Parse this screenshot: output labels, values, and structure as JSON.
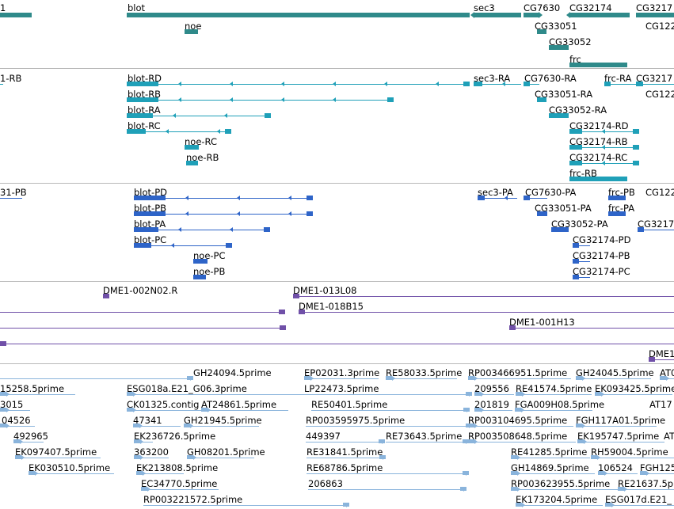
{
  "colors": {
    "gene": "#2f8a8a",
    "transcript": "#1fa0b8",
    "protein": "#2e64c8",
    "clone": "#7050a8",
    "est": "#8ab4dc",
    "separator": "#b8b8b8"
  },
  "tracks": {
    "genes": [
      {
        "label": "1"
      },
      {
        "label": "blot"
      },
      {
        "label": "noe"
      },
      {
        "label": "sec3"
      },
      {
        "label": "CG7630"
      },
      {
        "label": "CG32174"
      },
      {
        "label": "CG3217"
      },
      {
        "label": "CG33051"
      },
      {
        "label": "CG122"
      },
      {
        "label": "CG33052"
      },
      {
        "label": "frc"
      }
    ],
    "transcripts": [
      {
        "label": "1-RB"
      },
      {
        "label": "blot-RD"
      },
      {
        "label": "blot-RB"
      },
      {
        "label": "blot-RA"
      },
      {
        "label": "blot-RC"
      },
      {
        "label": "noe-RC"
      },
      {
        "label": "noe-RB"
      },
      {
        "label": "sec3-RA"
      },
      {
        "label": "CG7630-RA"
      },
      {
        "label": "frc-RA"
      },
      {
        "label": "CG3217"
      },
      {
        "label": "CG33051-RA"
      },
      {
        "label": "CG122"
      },
      {
        "label": "CG33052-RA"
      },
      {
        "label": "CG32174-RD"
      },
      {
        "label": "CG32174-RB"
      },
      {
        "label": "CG32174-RC"
      },
      {
        "label": "frc-RB"
      }
    ],
    "proteins": [
      {
        "label": "31-PB"
      },
      {
        "label": "blot-PD"
      },
      {
        "label": "blot-PB"
      },
      {
        "label": "blot-PA"
      },
      {
        "label": "blot-PC"
      },
      {
        "label": "noe-PC"
      },
      {
        "label": "noe-PB"
      },
      {
        "label": "sec3-PA"
      },
      {
        "label": "CG7630-PA"
      },
      {
        "label": "frc-PB"
      },
      {
        "label": "CG122"
      },
      {
        "label": "CG33051-PA"
      },
      {
        "label": "frc-PA"
      },
      {
        "label": "CG33052-PA"
      },
      {
        "label": "CG3217"
      },
      {
        "label": "CG32174-PD"
      },
      {
        "label": "CG32174-PB"
      },
      {
        "label": "CG32174-PC"
      }
    ],
    "clones": [
      {
        "label": "DME1-002N02.R"
      },
      {
        "label": "DME1-013L08"
      },
      {
        "label": "DME1-018B15"
      },
      {
        "label": "DME1-001H13"
      },
      {
        "label": "DME1"
      }
    ],
    "ests": [
      {
        "label": "GH24094.5prime"
      },
      {
        "label": "EP02031.3prime"
      },
      {
        "label": "RE58033.5prime"
      },
      {
        "label": "RP003466951.5prime"
      },
      {
        "label": "GH24045.5prime"
      },
      {
        "label": "AT0"
      },
      {
        "label": "15258.5prime"
      },
      {
        "label": "ESG018a.E21_G06.3prime"
      },
      {
        "label": "LP22473.5prime"
      },
      {
        "label": "209556"
      },
      {
        "label": "RE41574.5prime"
      },
      {
        "label": "EK093425.5prime"
      },
      {
        "label": "3015"
      },
      {
        "label": "CK01325.contig"
      },
      {
        "label": "AT24861.5prime"
      },
      {
        "label": "RE50401.5prime"
      },
      {
        "label": "201819"
      },
      {
        "label": "FGA009H08.5prime"
      },
      {
        "label": "AT17"
      },
      {
        "label": "04526"
      },
      {
        "label": "47341"
      },
      {
        "label": "GH21945.5prime"
      },
      {
        "label": "RP003595975.5prime"
      },
      {
        "label": "RP003104695.5prime"
      },
      {
        "label": "FGH117A01.5prime"
      },
      {
        "label": "492965"
      },
      {
        "label": "EK236726.5prime"
      },
      {
        "label": "449397"
      },
      {
        "label": "RE73643.5prime"
      },
      {
        "label": "RP003508648.5prime"
      },
      {
        "label": "EK195747.5prime"
      },
      {
        "label": "AT"
      },
      {
        "label": "EK097407.5prime"
      },
      {
        "label": "363200"
      },
      {
        "label": "GH08201.5prime"
      },
      {
        "label": "RE31841.5prime"
      },
      {
        "label": "RE41285.5prime"
      },
      {
        "label": "RH59004.5prime"
      },
      {
        "label": "EK030510.5prime"
      },
      {
        "label": "EK213808.5prime"
      },
      {
        "label": "RE68786.5prime"
      },
      {
        "label": "GH14869.5prime"
      },
      {
        "label": "106524"
      },
      {
        "label": "FGH125"
      },
      {
        "label": "EC34770.5prime"
      },
      {
        "label": "206863"
      },
      {
        "label": "RP003623955.5prime"
      },
      {
        "label": "RE21637.5pr"
      },
      {
        "label": "RP003221572.5prime"
      },
      {
        "label": "EK173204.5prime"
      },
      {
        "label": "ESG017d.E21_"
      }
    ]
  }
}
